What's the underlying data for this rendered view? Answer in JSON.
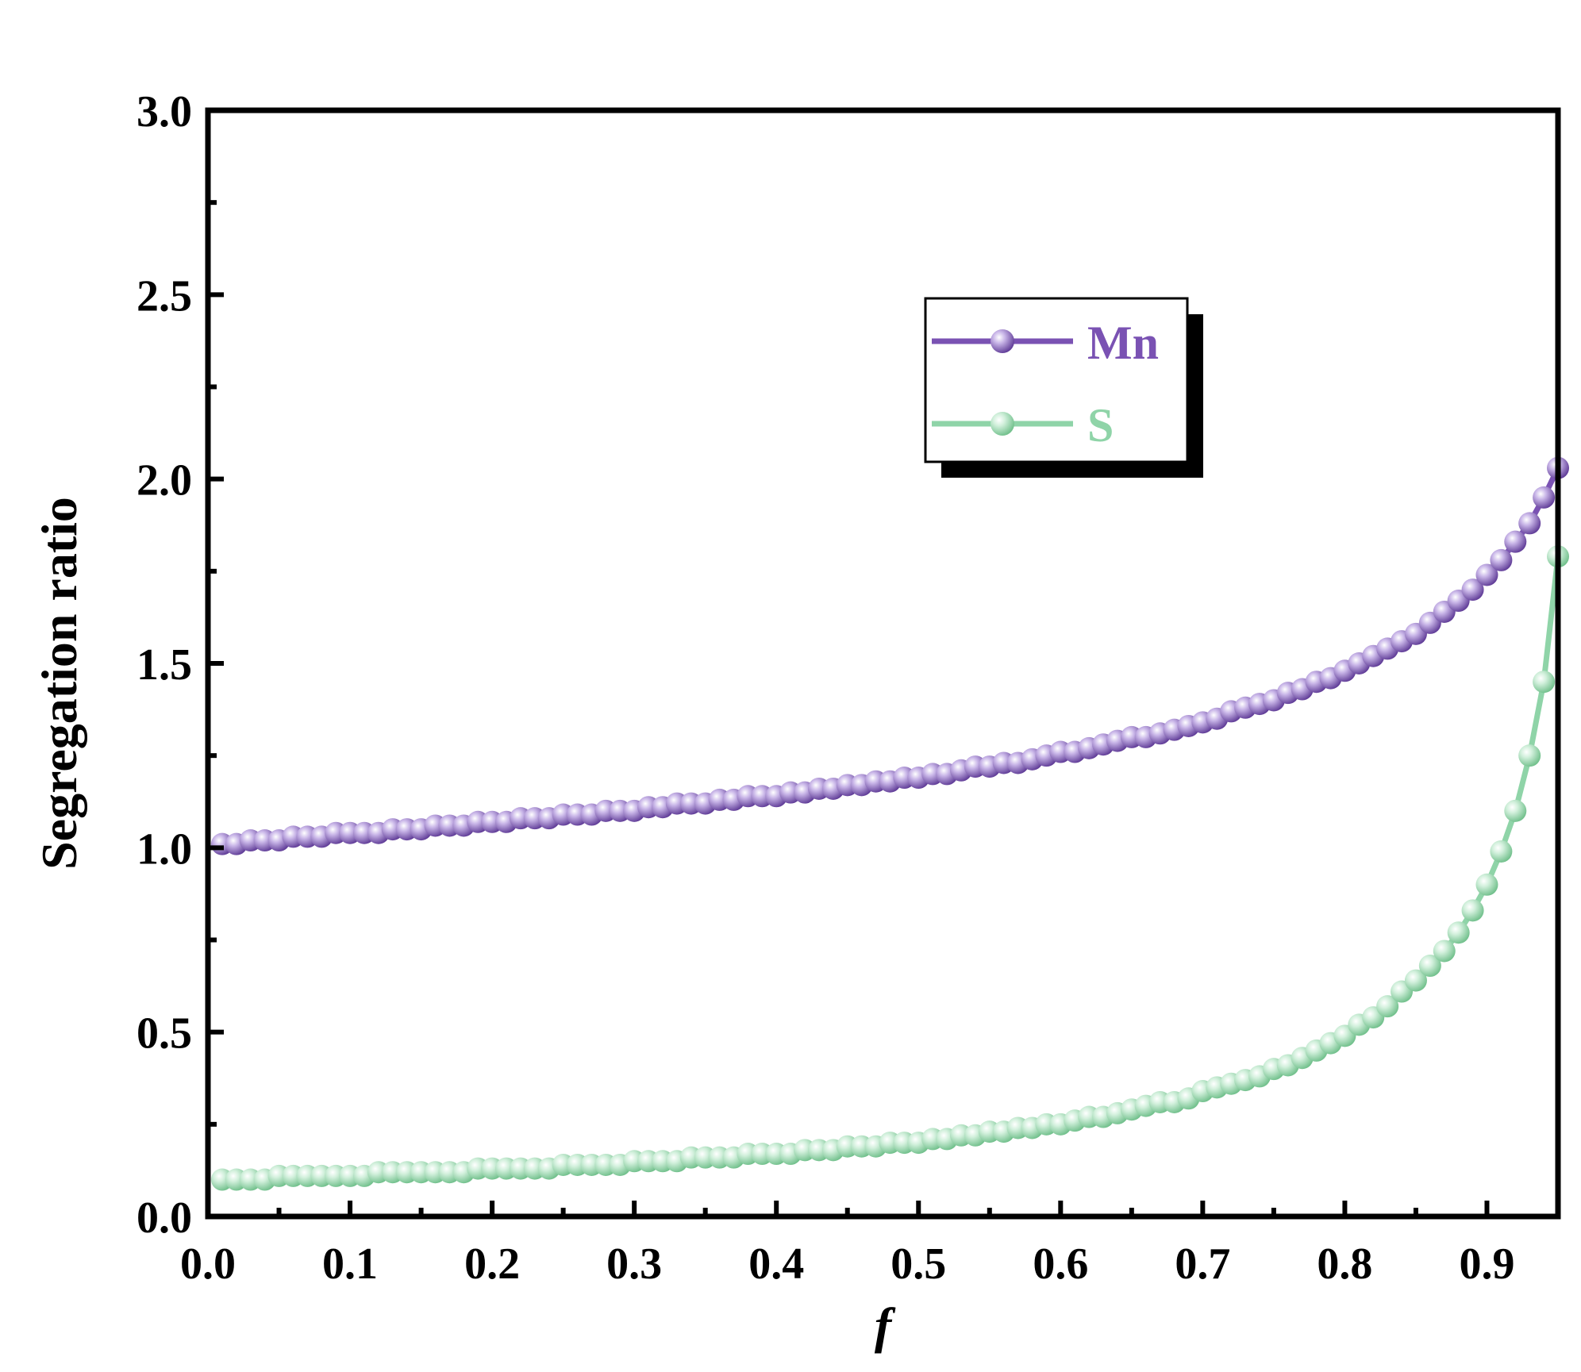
{
  "chart_data": {
    "type": "line",
    "xlabel": "f",
    "ylabel": "Segregation ratio",
    "xlim": [
      0.0,
      0.95
    ],
    "ylim": [
      0.0,
      3.0
    ],
    "xticks": [
      "0.0",
      "0.1",
      "0.2",
      "0.3",
      "0.4",
      "0.5",
      "0.6",
      "0.7",
      "0.8",
      "0.9"
    ],
    "yticks": [
      "0.0",
      "0.5",
      "1.0",
      "1.5",
      "2.0",
      "2.5",
      "3.0"
    ],
    "grid": false,
    "legend_position": "upper-right",
    "series": [
      {
        "name": "Mn",
        "color": "#7a52b3",
        "marker": "sphere",
        "x": [
          0.01,
          0.02,
          0.03,
          0.04,
          0.05,
          0.06,
          0.07,
          0.08,
          0.09,
          0.1,
          0.11,
          0.12,
          0.13,
          0.14,
          0.15,
          0.16,
          0.17,
          0.18,
          0.19,
          0.2,
          0.21,
          0.22,
          0.23,
          0.24,
          0.25,
          0.26,
          0.27,
          0.28,
          0.29,
          0.3,
          0.31,
          0.32,
          0.33,
          0.34,
          0.35,
          0.36,
          0.37,
          0.38,
          0.39,
          0.4,
          0.41,
          0.42,
          0.43,
          0.44,
          0.45,
          0.46,
          0.47,
          0.48,
          0.49,
          0.5,
          0.51,
          0.52,
          0.53,
          0.54,
          0.55,
          0.56,
          0.57,
          0.58,
          0.59,
          0.6,
          0.61,
          0.62,
          0.63,
          0.64,
          0.65,
          0.66,
          0.67,
          0.68,
          0.69,
          0.7,
          0.71,
          0.72,
          0.73,
          0.74,
          0.75,
          0.76,
          0.77,
          0.78,
          0.79,
          0.8,
          0.81,
          0.82,
          0.83,
          0.84,
          0.85,
          0.86,
          0.87,
          0.88,
          0.89,
          0.9,
          0.91,
          0.92,
          0.93,
          0.94,
          0.95
        ],
        "y": [
          1.01,
          1.01,
          1.02,
          1.02,
          1.02,
          1.03,
          1.03,
          1.03,
          1.04,
          1.04,
          1.04,
          1.04,
          1.05,
          1.05,
          1.05,
          1.06,
          1.06,
          1.06,
          1.07,
          1.07,
          1.07,
          1.08,
          1.08,
          1.08,
          1.09,
          1.09,
          1.09,
          1.1,
          1.1,
          1.1,
          1.11,
          1.11,
          1.12,
          1.12,
          1.12,
          1.13,
          1.13,
          1.14,
          1.14,
          1.14,
          1.15,
          1.15,
          1.16,
          1.16,
          1.17,
          1.17,
          1.18,
          1.18,
          1.19,
          1.19,
          1.2,
          1.2,
          1.21,
          1.22,
          1.22,
          1.23,
          1.23,
          1.24,
          1.25,
          1.26,
          1.26,
          1.27,
          1.28,
          1.29,
          1.3,
          1.3,
          1.31,
          1.32,
          1.33,
          1.34,
          1.35,
          1.37,
          1.38,
          1.39,
          1.4,
          1.42,
          1.43,
          1.45,
          1.46,
          1.48,
          1.5,
          1.52,
          1.54,
          1.56,
          1.58,
          1.61,
          1.64,
          1.67,
          1.7,
          1.74,
          1.78,
          1.83,
          1.88,
          1.95,
          2.03
        ]
      },
      {
        "name": "S",
        "color": "#8fd4a8",
        "marker": "sphere",
        "x": [
          0.01,
          0.02,
          0.03,
          0.04,
          0.05,
          0.06,
          0.07,
          0.08,
          0.09,
          0.1,
          0.11,
          0.12,
          0.13,
          0.14,
          0.15,
          0.16,
          0.17,
          0.18,
          0.19,
          0.2,
          0.21,
          0.22,
          0.23,
          0.24,
          0.25,
          0.26,
          0.27,
          0.28,
          0.29,
          0.3,
          0.31,
          0.32,
          0.33,
          0.34,
          0.35,
          0.36,
          0.37,
          0.38,
          0.39,
          0.4,
          0.41,
          0.42,
          0.43,
          0.44,
          0.45,
          0.46,
          0.47,
          0.48,
          0.49,
          0.5,
          0.51,
          0.52,
          0.53,
          0.54,
          0.55,
          0.56,
          0.57,
          0.58,
          0.59,
          0.6,
          0.61,
          0.62,
          0.63,
          0.64,
          0.65,
          0.66,
          0.67,
          0.68,
          0.69,
          0.7,
          0.71,
          0.72,
          0.73,
          0.74,
          0.75,
          0.76,
          0.77,
          0.78,
          0.79,
          0.8,
          0.81,
          0.82,
          0.83,
          0.84,
          0.85,
          0.86,
          0.87,
          0.88,
          0.89,
          0.9,
          0.91,
          0.92,
          0.93,
          0.94,
          0.95
        ],
        "y": [
          0.1,
          0.1,
          0.1,
          0.1,
          0.11,
          0.11,
          0.11,
          0.11,
          0.11,
          0.11,
          0.11,
          0.12,
          0.12,
          0.12,
          0.12,
          0.12,
          0.12,
          0.12,
          0.13,
          0.13,
          0.13,
          0.13,
          0.13,
          0.13,
          0.14,
          0.14,
          0.14,
          0.14,
          0.14,
          0.15,
          0.15,
          0.15,
          0.15,
          0.16,
          0.16,
          0.16,
          0.16,
          0.17,
          0.17,
          0.17,
          0.17,
          0.18,
          0.18,
          0.18,
          0.19,
          0.19,
          0.19,
          0.2,
          0.2,
          0.2,
          0.21,
          0.21,
          0.22,
          0.22,
          0.23,
          0.23,
          0.24,
          0.24,
          0.25,
          0.25,
          0.26,
          0.27,
          0.27,
          0.28,
          0.29,
          0.3,
          0.31,
          0.31,
          0.32,
          0.34,
          0.35,
          0.36,
          0.37,
          0.38,
          0.4,
          0.41,
          0.43,
          0.45,
          0.47,
          0.49,
          0.52,
          0.54,
          0.57,
          0.61,
          0.64,
          0.68,
          0.72,
          0.77,
          0.83,
          0.9,
          0.99,
          1.1,
          1.25,
          1.45,
          1.79
        ]
      }
    ]
  }
}
